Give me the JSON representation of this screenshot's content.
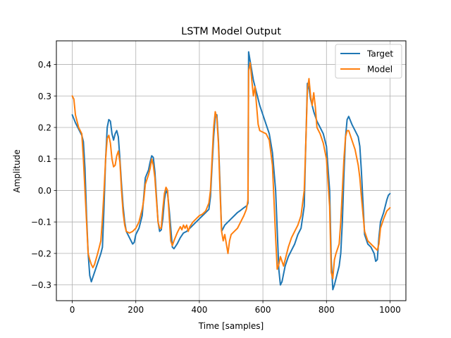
{
  "chart_data": {
    "type": "line",
    "title": "LSTM Model Output",
    "xlabel": "Time [samples]",
    "ylabel": "Amplitude",
    "xlim": [
      -50,
      1050
    ],
    "ylim": [
      -0.35,
      0.475
    ],
    "xticks": [
      0,
      200,
      400,
      600,
      800,
      1000
    ],
    "xtick_labels": [
      "0",
      "200",
      "400",
      "600",
      "800",
      "1000"
    ],
    "yticks": [
      -0.3,
      -0.2,
      -0.1,
      0.0,
      0.1,
      0.2,
      0.3,
      0.4
    ],
    "ytick_labels": [
      "−0.3",
      "−0.2",
      "−0.1",
      "0.0",
      "0.1",
      "0.2",
      "0.3",
      "0.4"
    ],
    "grid": true,
    "legend_position": "top-right",
    "series": [
      {
        "name": "Target",
        "color": "#1f77b4",
        "points": [
          [
            0,
            0.24
          ],
          [
            10,
            0.215
          ],
          [
            20,
            0.195
          ],
          [
            30,
            0.175
          ],
          [
            35,
            0.155
          ],
          [
            40,
            0.07
          ],
          [
            45,
            -0.08
          ],
          [
            50,
            -0.2
          ],
          [
            55,
            -0.27
          ],
          [
            60,
            -0.29
          ],
          [
            65,
            -0.275
          ],
          [
            70,
            -0.26
          ],
          [
            80,
            -0.23
          ],
          [
            90,
            -0.2
          ],
          [
            95,
            -0.18
          ],
          [
            100,
            -0.05
          ],
          [
            105,
            0.1
          ],
          [
            110,
            0.2
          ],
          [
            115,
            0.225
          ],
          [
            120,
            0.22
          ],
          [
            125,
            0.18
          ],
          [
            130,
            0.16
          ],
          [
            135,
            0.18
          ],
          [
            140,
            0.19
          ],
          [
            145,
            0.17
          ],
          [
            150,
            0.1
          ],
          [
            155,
            0.02
          ],
          [
            160,
            -0.05
          ],
          [
            165,
            -0.1
          ],
          [
            170,
            -0.13
          ],
          [
            180,
            -0.15
          ],
          [
            190,
            -0.17
          ],
          [
            195,
            -0.165
          ],
          [
            200,
            -0.14
          ],
          [
            210,
            -0.12
          ],
          [
            220,
            -0.08
          ],
          [
            225,
            -0.02
          ],
          [
            230,
            0.04
          ],
          [
            240,
            0.065
          ],
          [
            245,
            0.09
          ],
          [
            250,
            0.11
          ],
          [
            255,
            0.105
          ],
          [
            260,
            0.06
          ],
          [
            265,
            -0.02
          ],
          [
            270,
            -0.1
          ],
          [
            275,
            -0.13
          ],
          [
            280,
            -0.125
          ],
          [
            285,
            -0.09
          ],
          [
            290,
            -0.03
          ],
          [
            295,
            0.0
          ],
          [
            300,
            -0.01
          ],
          [
            305,
            -0.06
          ],
          [
            310,
            -0.12
          ],
          [
            315,
            -0.18
          ],
          [
            320,
            -0.185
          ],
          [
            330,
            -0.17
          ],
          [
            340,
            -0.15
          ],
          [
            350,
            -0.135
          ],
          [
            360,
            -0.13
          ],
          [
            370,
            -0.12
          ],
          [
            380,
            -0.11
          ],
          [
            390,
            -0.1
          ],
          [
            400,
            -0.09
          ],
          [
            410,
            -0.08
          ],
          [
            420,
            -0.07
          ],
          [
            430,
            -0.06
          ],
          [
            435,
            -0.02
          ],
          [
            440,
            0.08
          ],
          [
            445,
            0.17
          ],
          [
            450,
            0.235
          ],
          [
            455,
            0.24
          ],
          [
            460,
            0.16
          ],
          [
            465,
            0.02
          ],
          [
            470,
            -0.13
          ],
          [
            475,
            -0.12
          ],
          [
            480,
            -0.11
          ],
          [
            490,
            -0.1
          ],
          [
            500,
            -0.09
          ],
          [
            510,
            -0.08
          ],
          [
            520,
            -0.07
          ],
          [
            530,
            -0.063
          ],
          [
            540,
            -0.055
          ],
          [
            550,
            -0.048
          ],
          [
            553,
            -0.04
          ],
          [
            555,
            0.44
          ],
          [
            560,
            0.41
          ],
          [
            570,
            0.35
          ],
          [
            580,
            0.31
          ],
          [
            590,
            0.27
          ],
          [
            600,
            0.24
          ],
          [
            610,
            0.21
          ],
          [
            620,
            0.18
          ],
          [
            630,
            0.12
          ],
          [
            640,
            0.0
          ],
          [
            650,
            -0.25
          ],
          [
            655,
            -0.3
          ],
          [
            660,
            -0.29
          ],
          [
            670,
            -0.24
          ],
          [
            680,
            -0.21
          ],
          [
            690,
            -0.19
          ],
          [
            700,
            -0.17
          ],
          [
            710,
            -0.14
          ],
          [
            720,
            -0.12
          ],
          [
            730,
            -0.05
          ],
          [
            735,
            0.15
          ],
          [
            740,
            0.34
          ],
          [
            745,
            0.325
          ],
          [
            750,
            0.29
          ],
          [
            760,
            0.25
          ],
          [
            770,
            0.22
          ],
          [
            780,
            0.2
          ],
          [
            790,
            0.18
          ],
          [
            800,
            0.14
          ],
          [
            810,
            0.0
          ],
          [
            815,
            -0.22
          ],
          [
            820,
            -0.315
          ],
          [
            825,
            -0.3
          ],
          [
            830,
            -0.28
          ],
          [
            840,
            -0.24
          ],
          [
            845,
            -0.2
          ],
          [
            850,
            -0.1
          ],
          [
            855,
            0.05
          ],
          [
            860,
            0.17
          ],
          [
            865,
            0.225
          ],
          [
            870,
            0.235
          ],
          [
            880,
            0.21
          ],
          [
            890,
            0.19
          ],
          [
            900,
            0.17
          ],
          [
            905,
            0.14
          ],
          [
            910,
            0.06
          ],
          [
            915,
            -0.04
          ],
          [
            920,
            -0.14
          ],
          [
            930,
            -0.17
          ],
          [
            940,
            -0.18
          ],
          [
            950,
            -0.2
          ],
          [
            955,
            -0.225
          ],
          [
            960,
            -0.22
          ],
          [
            965,
            -0.15
          ],
          [
            970,
            -0.1
          ],
          [
            980,
            -0.07
          ],
          [
            990,
            -0.03
          ],
          [
            995,
            -0.015
          ],
          [
            1000,
            -0.01
          ]
        ]
      },
      {
        "name": "Model",
        "color": "#ff7f0e",
        "points": [
          [
            0,
            0.3
          ],
          [
            5,
            0.29
          ],
          [
            10,
            0.24
          ],
          [
            20,
            0.2
          ],
          [
            30,
            0.18
          ],
          [
            35,
            0.1
          ],
          [
            40,
            0.0
          ],
          [
            45,
            -0.1
          ],
          [
            50,
            -0.2
          ],
          [
            55,
            -0.22
          ],
          [
            60,
            -0.235
          ],
          [
            65,
            -0.245
          ],
          [
            70,
            -0.235
          ],
          [
            80,
            -0.2
          ],
          [
            90,
            -0.16
          ],
          [
            95,
            -0.09
          ],
          [
            100,
            0.0
          ],
          [
            105,
            0.1
          ],
          [
            110,
            0.165
          ],
          [
            115,
            0.175
          ],
          [
            120,
            0.15
          ],
          [
            125,
            0.1
          ],
          [
            130,
            0.075
          ],
          [
            135,
            0.08
          ],
          [
            140,
            0.11
          ],
          [
            145,
            0.125
          ],
          [
            150,
            0.09
          ],
          [
            155,
            0.0
          ],
          [
            160,
            -0.07
          ],
          [
            165,
            -0.11
          ],
          [
            170,
            -0.13
          ],
          [
            180,
            -0.135
          ],
          [
            190,
            -0.13
          ],
          [
            200,
            -0.12
          ],
          [
            210,
            -0.1
          ],
          [
            220,
            -0.06
          ],
          [
            225,
            -0.03
          ],
          [
            230,
            0.02
          ],
          [
            240,
            0.05
          ],
          [
            245,
            0.07
          ],
          [
            250,
            0.1
          ],
          [
            255,
            0.08
          ],
          [
            260,
            0.04
          ],
          [
            265,
            -0.03
          ],
          [
            270,
            -0.1
          ],
          [
            275,
            -0.12
          ],
          [
            280,
            -0.12
          ],
          [
            285,
            -0.06
          ],
          [
            290,
            -0.01
          ],
          [
            295,
            0.01
          ],
          [
            300,
            0.0
          ],
          [
            305,
            -0.08
          ],
          [
            310,
            -0.16
          ],
          [
            315,
            -0.175
          ],
          [
            320,
            -0.16
          ],
          [
            330,
            -0.135
          ],
          [
            335,
            -0.125
          ],
          [
            340,
            -0.115
          ],
          [
            345,
            -0.125
          ],
          [
            350,
            -0.11
          ],
          [
            355,
            -0.12
          ],
          [
            360,
            -0.11
          ],
          [
            365,
            -0.13
          ],
          [
            370,
            -0.115
          ],
          [
            380,
            -0.1
          ],
          [
            390,
            -0.09
          ],
          [
            400,
            -0.08
          ],
          [
            410,
            -0.075
          ],
          [
            420,
            -0.065
          ],
          [
            430,
            -0.04
          ],
          [
            435,
            0.0
          ],
          [
            440,
            0.1
          ],
          [
            445,
            0.2
          ],
          [
            450,
            0.25
          ],
          [
            455,
            0.23
          ],
          [
            460,
            0.15
          ],
          [
            465,
            0.0
          ],
          [
            470,
            -0.13
          ],
          [
            475,
            -0.16
          ],
          [
            480,
            -0.14
          ],
          [
            485,
            -0.17
          ],
          [
            490,
            -0.2
          ],
          [
            495,
            -0.16
          ],
          [
            500,
            -0.14
          ],
          [
            510,
            -0.13
          ],
          [
            520,
            -0.12
          ],
          [
            530,
            -0.1
          ],
          [
            540,
            -0.08
          ],
          [
            548,
            -0.06
          ],
          [
            553,
            -0.03
          ],
          [
            555,
            0.38
          ],
          [
            560,
            0.405
          ],
          [
            565,
            0.35
          ],
          [
            570,
            0.3
          ],
          [
            575,
            0.33
          ],
          [
            580,
            0.27
          ],
          [
            585,
            0.21
          ],
          [
            590,
            0.19
          ],
          [
            600,
            0.185
          ],
          [
            610,
            0.18
          ],
          [
            620,
            0.16
          ],
          [
            630,
            0.08
          ],
          [
            640,
            -0.15
          ],
          [
            645,
            -0.25
          ],
          [
            650,
            -0.235
          ],
          [
            655,
            -0.21
          ],
          [
            660,
            -0.225
          ],
          [
            665,
            -0.24
          ],
          [
            670,
            -0.22
          ],
          [
            680,
            -0.18
          ],
          [
            690,
            -0.15
          ],
          [
            700,
            -0.13
          ],
          [
            710,
            -0.11
          ],
          [
            720,
            -0.08
          ],
          [
            730,
            0.0
          ],
          [
            735,
            0.15
          ],
          [
            740,
            0.32
          ],
          [
            745,
            0.355
          ],
          [
            750,
            0.3
          ],
          [
            755,
            0.27
          ],
          [
            760,
            0.31
          ],
          [
            765,
            0.265
          ],
          [
            770,
            0.2
          ],
          [
            780,
            0.18
          ],
          [
            790,
            0.15
          ],
          [
            800,
            0.1
          ],
          [
            810,
            -0.05
          ],
          [
            815,
            -0.26
          ],
          [
            820,
            -0.28
          ],
          [
            825,
            -0.22
          ],
          [
            830,
            -0.2
          ],
          [
            840,
            -0.17
          ],
          [
            845,
            -0.1
          ],
          [
            850,
            0.0
          ],
          [
            855,
            0.1
          ],
          [
            860,
            0.17
          ],
          [
            865,
            0.19
          ],
          [
            870,
            0.19
          ],
          [
            880,
            0.16
          ],
          [
            890,
            0.13
          ],
          [
            900,
            0.08
          ],
          [
            905,
            0.04
          ],
          [
            910,
            -0.02
          ],
          [
            920,
            -0.13
          ],
          [
            930,
            -0.16
          ],
          [
            940,
            -0.17
          ],
          [
            950,
            -0.18
          ],
          [
            960,
            -0.19
          ],
          [
            965,
            -0.17
          ],
          [
            970,
            -0.12
          ],
          [
            980,
            -0.09
          ],
          [
            990,
            -0.065
          ],
          [
            1000,
            -0.055
          ]
        ]
      }
    ]
  }
}
